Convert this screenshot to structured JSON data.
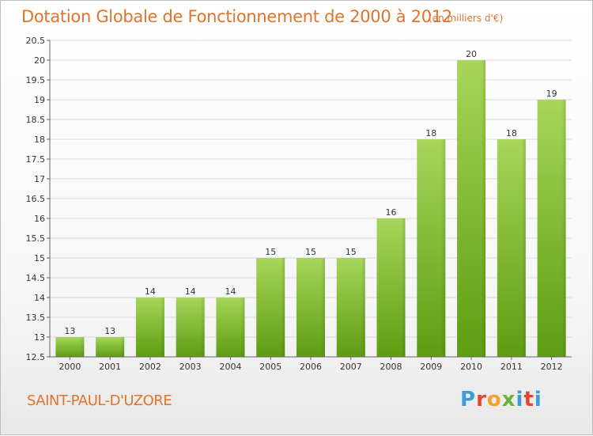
{
  "header": {
    "title": "Dotation Globale de Fonctionnement de 2000 à 2012",
    "unit": "(en milliers d'€)"
  },
  "footer": {
    "commune": "SAINT-PAUL-D'UZORE",
    "logo": "Proxiti"
  },
  "colors": {
    "title": "#e0742c",
    "bar_top": "#a6d65a",
    "bar_bottom": "#5e9c12",
    "grid": "#d9d9d9"
  },
  "chart_data": {
    "type": "bar",
    "title": "Dotation Globale de Fonctionnement de 2000 à 2012",
    "xlabel": "",
    "ylabel": "",
    "categories": [
      "2000",
      "2001",
      "2002",
      "2003",
      "2004",
      "2005",
      "2006",
      "2007",
      "2008",
      "2009",
      "2010",
      "2011",
      "2012"
    ],
    "values": [
      13,
      13,
      14,
      14,
      14,
      15,
      15,
      15,
      16,
      18,
      20,
      18,
      19
    ],
    "ylim": [
      12.5,
      20.5
    ],
    "yticks": [
      "12.5",
      "13",
      "13.5",
      "14",
      "14.5",
      "15",
      "15.5",
      "16",
      "16.5",
      "17",
      "17.5",
      "18",
      "18.5",
      "19",
      "19.5",
      "20",
      "20.5"
    ],
    "grid": true
  }
}
